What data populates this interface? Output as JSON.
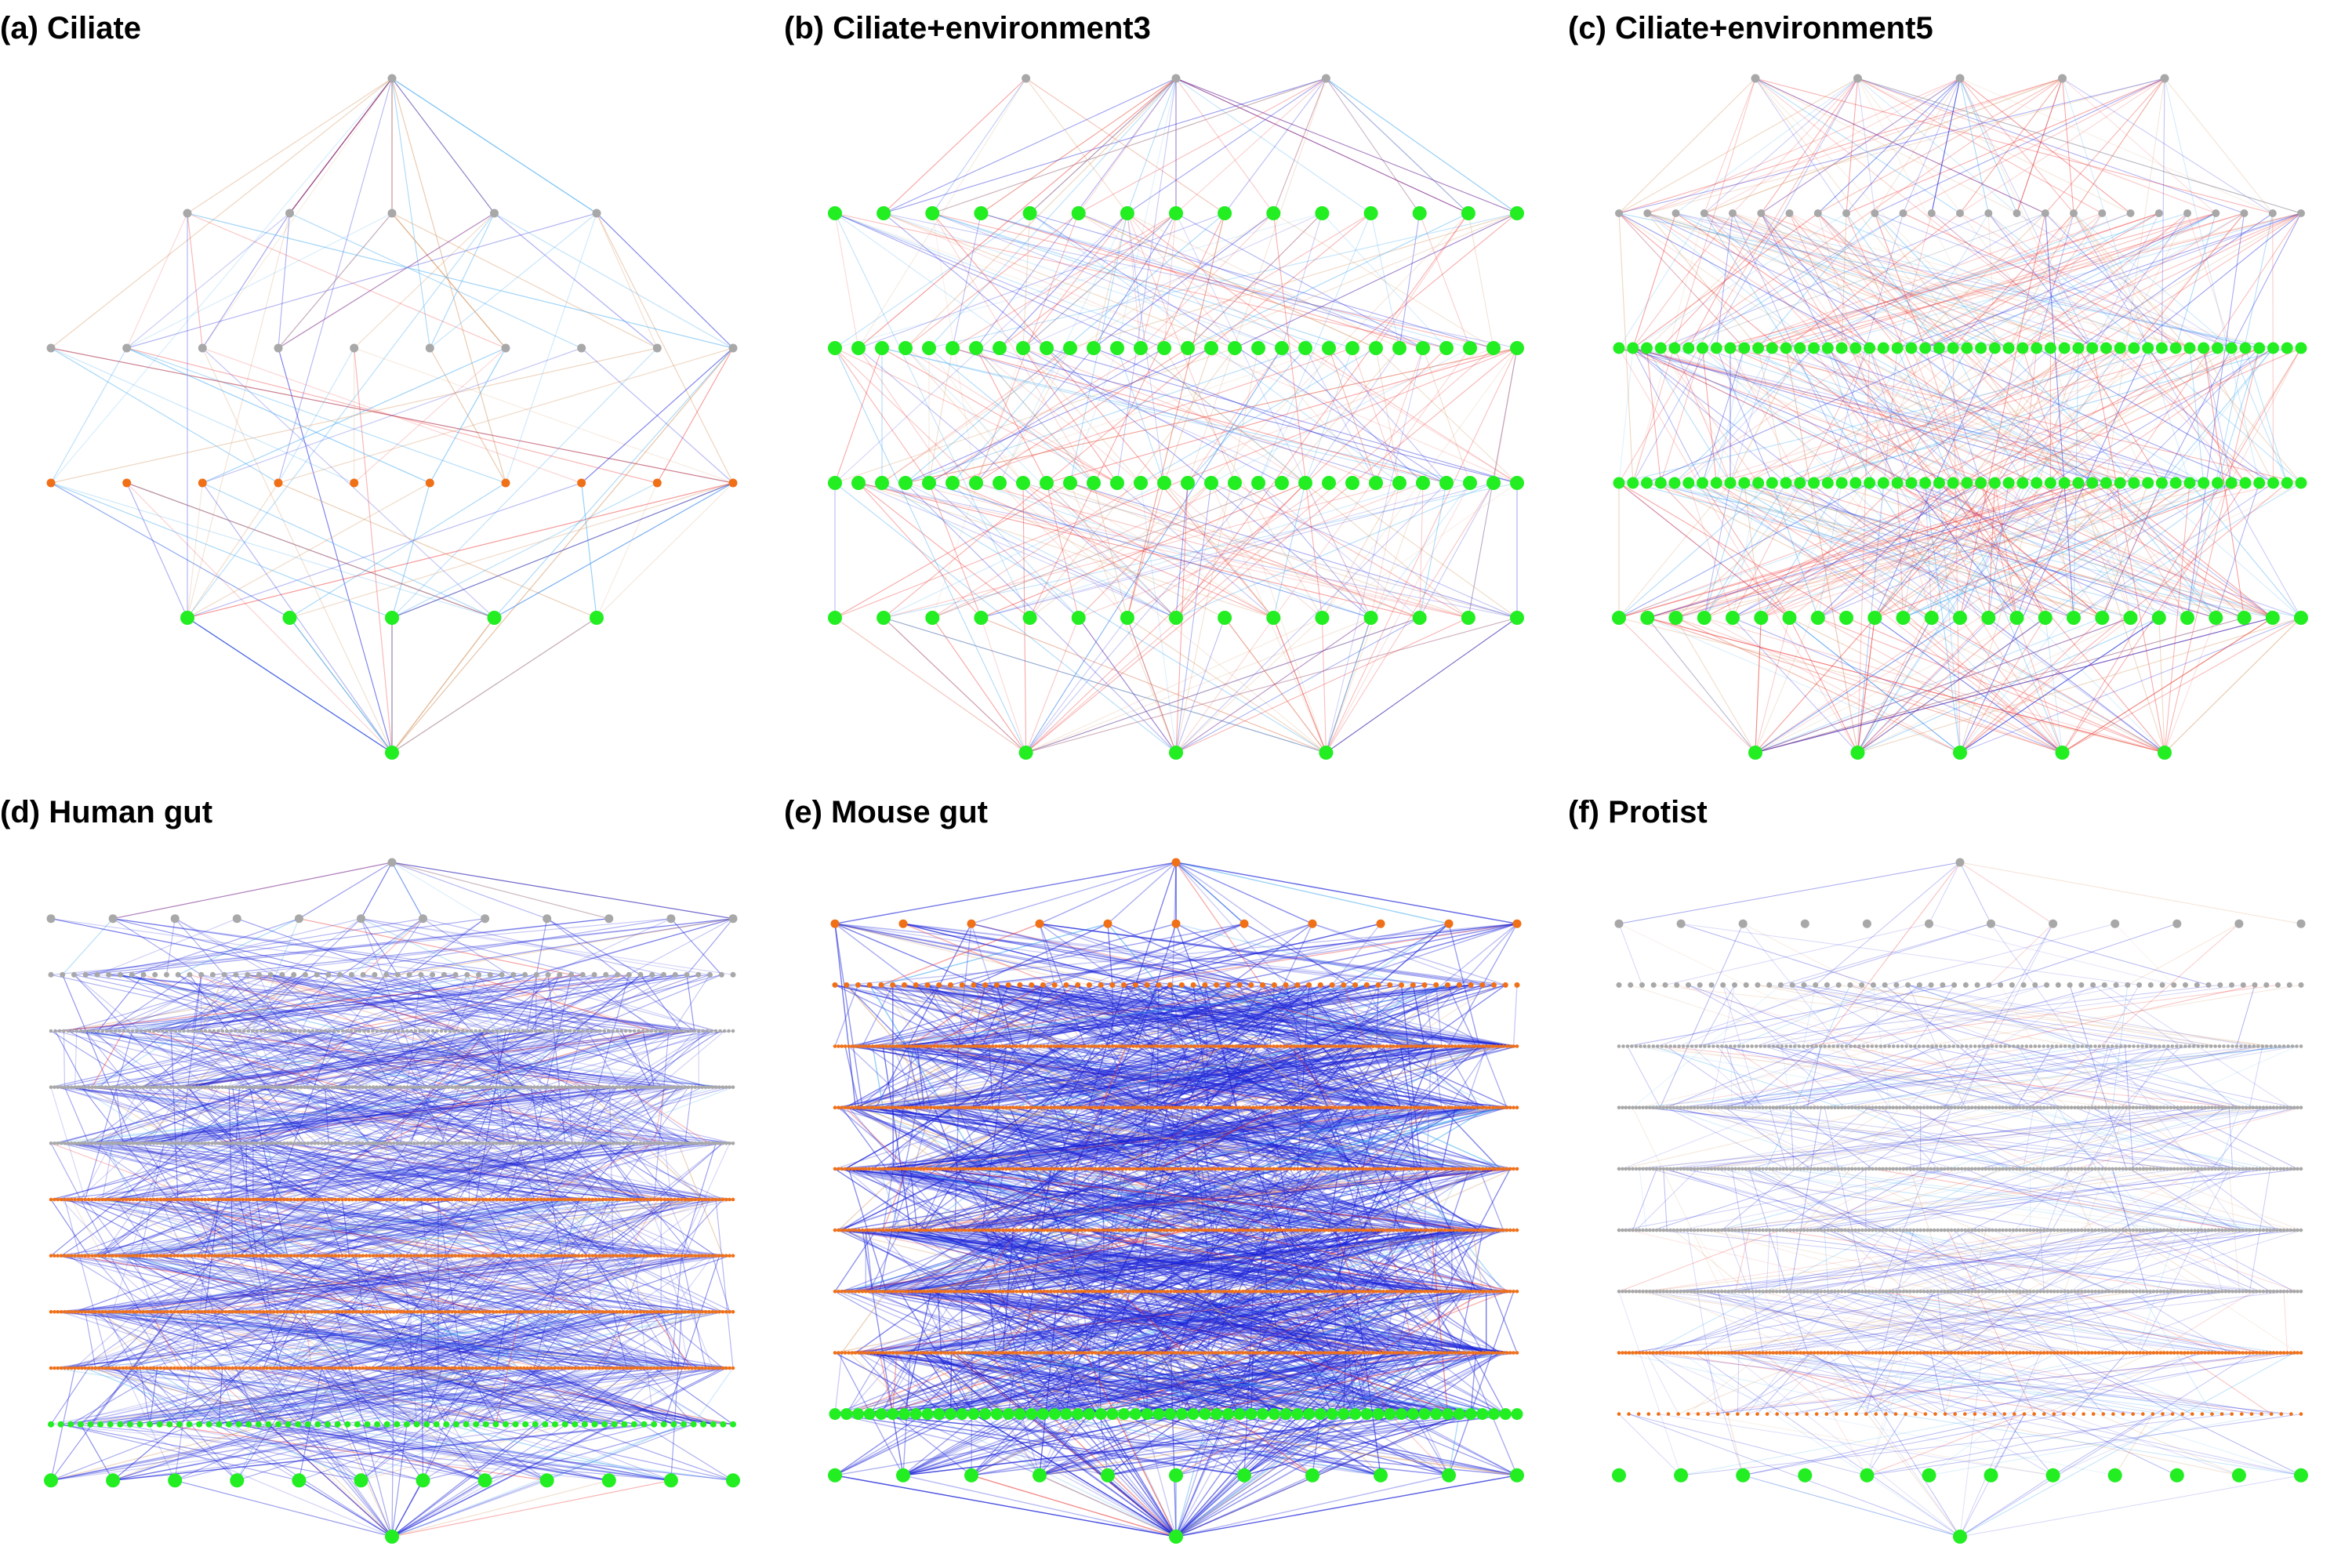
{
  "colors": {
    "grey": "#a8a8a8",
    "orange": "#f07018",
    "green": "#22ee22",
    "blue": "#1a22d8",
    "red": "#ee3030",
    "lightblue": "#40a8f0",
    "tan": "#d8a070"
  },
  "panels": [
    {
      "id": "a",
      "title": "(a) Ciliate",
      "density": "sparse",
      "layers": [
        {
          "count": 1,
          "color": "grey"
        },
        {
          "count": 5,
          "color": "grey"
        },
        {
          "count": 10,
          "color": "grey"
        },
        {
          "count": 10,
          "color": "orange"
        },
        {
          "count": 5,
          "color": "green"
        },
        {
          "count": 1,
          "color": "green"
        }
      ]
    },
    {
      "id": "b",
      "title": "(b) Ciliate+environment3",
      "density": "medium",
      "layers": [
        {
          "count": 3,
          "color": "grey"
        },
        {
          "count": 15,
          "color": "green"
        },
        {
          "count": 30,
          "color": "green"
        },
        {
          "count": 30,
          "color": "green"
        },
        {
          "count": 15,
          "color": "green"
        },
        {
          "count": 3,
          "color": "green"
        }
      ]
    },
    {
      "id": "c",
      "title": "(c) Ciliate+environment5",
      "density": "medium",
      "layers": [
        {
          "count": 5,
          "color": "grey"
        },
        {
          "count": 25,
          "color": "grey"
        },
        {
          "count": 50,
          "color": "green"
        },
        {
          "count": 50,
          "color": "green"
        },
        {
          "count": 25,
          "color": "green"
        },
        {
          "count": 5,
          "color": "green"
        }
      ]
    },
    {
      "id": "d",
      "title": "(d) Human gut",
      "density": "dense",
      "layers": [
        {
          "count": 1,
          "color": "grey"
        },
        {
          "count": 12,
          "color": "grey"
        },
        {
          "count": 60,
          "color": "grey"
        },
        {
          "count": 160,
          "color": "grey"
        },
        {
          "count": 200,
          "color": "grey"
        },
        {
          "count": 200,
          "color": "grey"
        },
        {
          "count": 200,
          "color": "orange"
        },
        {
          "count": 200,
          "color": "orange"
        },
        {
          "count": 200,
          "color": "orange"
        },
        {
          "count": 200,
          "color": "orange"
        },
        {
          "count": 70,
          "color": "green"
        },
        {
          "count": 12,
          "color": "green"
        },
        {
          "count": 1,
          "color": "green"
        }
      ]
    },
    {
      "id": "e",
      "title": "(e) Mouse gut",
      "density": "verydense",
      "layers": [
        {
          "count": 1,
          "color": "orange"
        },
        {
          "count": 11,
          "color": "orange"
        },
        {
          "count": 60,
          "color": "orange"
        },
        {
          "count": 200,
          "color": "orange"
        },
        {
          "count": 200,
          "color": "orange"
        },
        {
          "count": 200,
          "color": "orange"
        },
        {
          "count": 200,
          "color": "orange"
        },
        {
          "count": 200,
          "color": "orange"
        },
        {
          "count": 200,
          "color": "orange"
        },
        {
          "count": 60,
          "color": "green"
        },
        {
          "count": 11,
          "color": "green"
        },
        {
          "count": 1,
          "color": "green"
        }
      ]
    },
    {
      "id": "f",
      "title": "(f) Protist",
      "density": "light",
      "layers": [
        {
          "count": 1,
          "color": "grey"
        },
        {
          "count": 12,
          "color": "grey"
        },
        {
          "count": 60,
          "color": "grey"
        },
        {
          "count": 160,
          "color": "grey"
        },
        {
          "count": 200,
          "color": "grey"
        },
        {
          "count": 200,
          "color": "grey"
        },
        {
          "count": 200,
          "color": "grey"
        },
        {
          "count": 200,
          "color": "grey"
        },
        {
          "count": 200,
          "color": "orange"
        },
        {
          "count": 70,
          "color": "orange"
        },
        {
          "count": 12,
          "color": "green"
        },
        {
          "count": 1,
          "color": "green"
        }
      ]
    }
  ]
}
